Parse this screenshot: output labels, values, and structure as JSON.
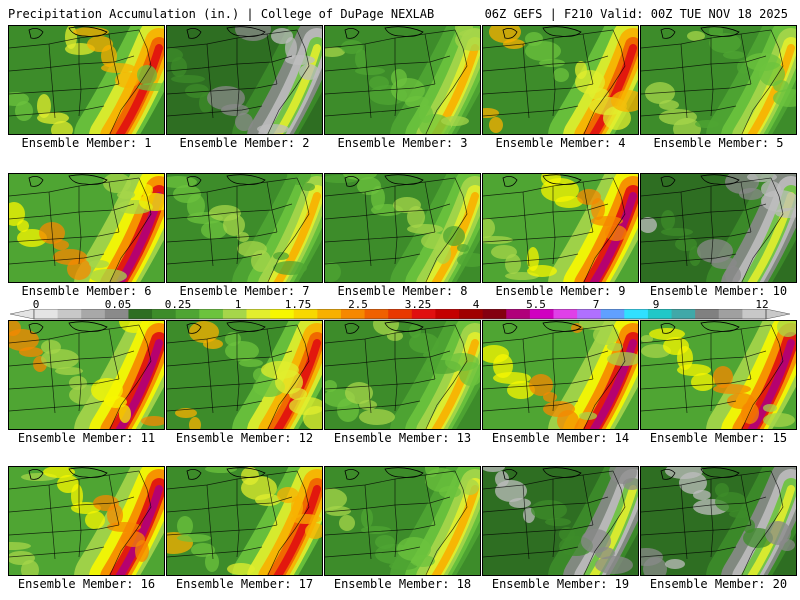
{
  "header": {
    "title_left": "Precipitation Accumulation (in.) | College of DuPage NEXLAB",
    "title_right": "06Z GEFS | F210 Valid: 00Z TUE NOV 18 2025"
  },
  "colorbar": {
    "tick_labels": [
      "0",
      "0.05",
      "0.25",
      "1",
      "1.75",
      "2.5",
      "3.25",
      "4",
      "5.5",
      "7",
      "9",
      "12"
    ],
    "colors": [
      "#e4e4e4",
      "#c8c8c8",
      "#a8a8a8",
      "#8a8a8a",
      "#2e6e22",
      "#3d8c2a",
      "#4fa533",
      "#6cc33d",
      "#a6d64a",
      "#e2ee2d",
      "#f7f700",
      "#f8d800",
      "#f8b000",
      "#f68800",
      "#f06000",
      "#e83800",
      "#e00f0f",
      "#c40000",
      "#a00000",
      "#840010",
      "#b0007a",
      "#d000c0",
      "#e040e8",
      "#b070ff",
      "#60a0ff",
      "#30e0ff",
      "#20c8c8",
      "#40a8a8",
      "#808080",
      "#a0a0a0",
      "#c8c8c8"
    ]
  },
  "panels": [
    {
      "label": "Ensemble Member: 1",
      "style": "wet"
    },
    {
      "label": "Ensemble Member: 2",
      "style": "dry"
    },
    {
      "label": "Ensemble Member: 3",
      "style": "moderate"
    },
    {
      "label": "Ensemble Member: 4",
      "style": "wet"
    },
    {
      "label": "Ensemble Member: 5",
      "style": "moderate"
    },
    {
      "label": "Ensemble Member: 6",
      "style": "veryWet"
    },
    {
      "label": "Ensemble Member: 7",
      "style": "moderate"
    },
    {
      "label": "Ensemble Member: 8",
      "style": "moderate"
    },
    {
      "label": "Ensemble Member: 9",
      "style": "veryWet"
    },
    {
      "label": "Ensemble Member: 10",
      "style": "dry"
    },
    {
      "label": "Ensemble Member: 11",
      "style": "veryWet"
    },
    {
      "label": "Ensemble Member: 12",
      "style": "wet"
    },
    {
      "label": "Ensemble Member: 13",
      "style": "moderate"
    },
    {
      "label": "Ensemble Member: 14",
      "style": "veryWet"
    },
    {
      "label": "Ensemble Member: 15",
      "style": "veryWet"
    },
    {
      "label": "Ensemble Member: 16",
      "style": "veryWet"
    },
    {
      "label": "Ensemble Member: 17",
      "style": "wet"
    },
    {
      "label": "Ensemble Member: 18",
      "style": "moderate"
    },
    {
      "label": "Ensemble Member: 19",
      "style": "dry"
    },
    {
      "label": "Ensemble Member: 20",
      "style": "dry"
    }
  ]
}
